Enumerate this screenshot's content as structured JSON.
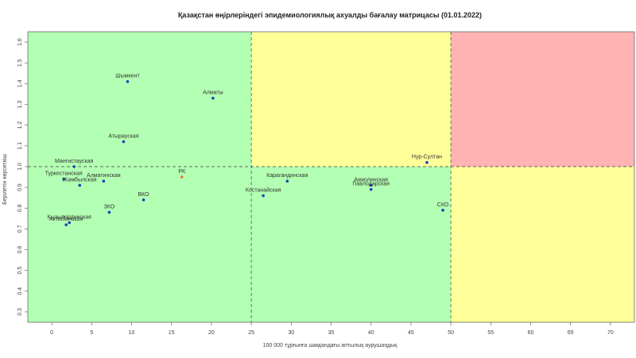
{
  "chart_data": {
    "type": "scatter",
    "title": "Қазақстан өңірлеріндегі эпидемиологиялық ахуалды бағалау матрицасы (01.01.2022)",
    "xlabel": "100 000 тұрғынға шаққандағы аптылық аурушаңдық",
    "ylabel": "Берілетін көрсеткіш",
    "xlim": [
      -3,
      73
    ],
    "ylim": [
      0.25,
      1.65
    ],
    "x_ticks": [
      "0",
      "5",
      "10",
      "15",
      "20",
      "25",
      "30",
      "35",
      "40",
      "45",
      "50",
      "55",
      "60",
      "65",
      "70"
    ],
    "y_ticks": [
      "0.3",
      "0.4",
      "0.5",
      "0.6",
      "0.7",
      "0.8",
      "0.9",
      "1.0",
      "1.1",
      "1.2",
      "1.3",
      "1.4",
      "1.5",
      "1.6"
    ],
    "grid": false,
    "zones": {
      "x_threshold": 25,
      "x_threshold_2": 50,
      "y_threshold": 1.0,
      "colors": {
        "green": "#b3ffb3",
        "yellow": "#ffff99",
        "red": "#ffb3b3"
      }
    },
    "point_color": "#1f3fb5",
    "highlight_color": "#e07a3a",
    "points": [
      {
        "label": "Шымкент",
        "x": 9.5,
        "y": 1.41
      },
      {
        "label": "Алматы",
        "x": 20.2,
        "y": 1.33
      },
      {
        "label": "Атырауская",
        "x": 9.0,
        "y": 1.12
      },
      {
        "label": "Нур-Султан",
        "x": 47.0,
        "y": 1.02
      },
      {
        "label": "Мангистауская",
        "x": 2.8,
        "y": 1.0
      },
      {
        "label": "Туркестанская",
        "x": 1.5,
        "y": 0.94
      },
      {
        "label": "Алматинская",
        "x": 6.5,
        "y": 0.93
      },
      {
        "label": "Жамбылская",
        "x": 3.5,
        "y": 0.91
      },
      {
        "label": "РК",
        "x": 16.3,
        "y": 0.95,
        "highlight": true
      },
      {
        "label": "Карагандинская",
        "x": 29.5,
        "y": 0.93
      },
      {
        "label": "Акмолинская",
        "x": 40.0,
        "y": 0.91
      },
      {
        "label": "Павлодарская",
        "x": 40.0,
        "y": 0.89
      },
      {
        "label": "Костанайская",
        "x": 26.5,
        "y": 0.86
      },
      {
        "label": "ВКО",
        "x": 11.5,
        "y": 0.84
      },
      {
        "label": "СКО",
        "x": 49.0,
        "y": 0.79
      },
      {
        "label": "ЗКО",
        "x": 7.2,
        "y": 0.78
      },
      {
        "label": "Кызылординская",
        "x": 2.2,
        "y": 0.73
      },
      {
        "label": "Актюбинская",
        "x": 1.8,
        "y": 0.72
      }
    ]
  }
}
